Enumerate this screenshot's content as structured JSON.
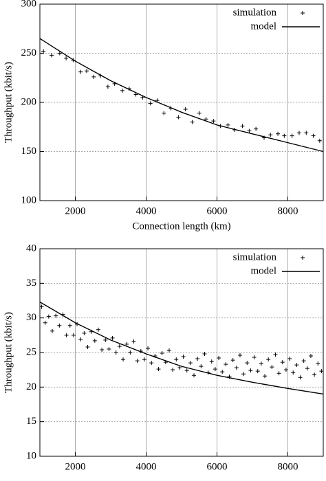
{
  "chart_data": [
    {
      "type": "combo",
      "xlabel": "Connection length (km)",
      "ylabel": "Throughput (kbit/s)",
      "xlim": [
        1000,
        9000
      ],
      "xticks": [
        2000,
        4000,
        6000,
        8000
      ],
      "ylim": [
        100,
        300
      ],
      "yticks": [
        100,
        150,
        200,
        250,
        300
      ],
      "grid": true,
      "legend": "upper right",
      "series": [
        {
          "name": "simulation",
          "type": "scatter",
          "color": "#000000",
          "x": [
            1100,
            1330,
            1560,
            1740,
            1940,
            2150,
            2320,
            2520,
            2710,
            2920,
            3110,
            3330,
            3520,
            3710,
            3900,
            4120,
            4310,
            4500,
            4700,
            4910,
            5110,
            5300,
            5500,
            5690,
            5900,
            6100,
            6310,
            6500,
            6720,
            6910,
            7100,
            7330,
            7510,
            7720,
            7900,
            8120,
            8320,
            8520,
            8720,
            8900
          ],
          "values": [
            252,
            248,
            250,
            245,
            243,
            231,
            232,
            226,
            227,
            216,
            219,
            212,
            214,
            208,
            205,
            199,
            202,
            189,
            194,
            185,
            193,
            180,
            189,
            183,
            181,
            176,
            177,
            172,
            176,
            171,
            173,
            164,
            167,
            168,
            166,
            166,
            169,
            169,
            166,
            161
          ]
        },
        {
          "name": "model",
          "type": "line",
          "color": "#000000",
          "x": [
            1000,
            2000,
            3000,
            4000,
            5000,
            6000,
            7000,
            8000,
            9000
          ],
          "values": [
            265,
            242,
            222,
            205,
            190,
            177,
            168,
            159,
            150
          ]
        }
      ]
    },
    {
      "type": "combo",
      "xlabel": "Connection length (km)",
      "ylabel": "Throughput (kbit/s)",
      "xlim": [
        1000,
        9000
      ],
      "xticks": [
        2000,
        4000,
        6000,
        8000
      ],
      "ylim": [
        10,
        40
      ],
      "yticks": [
        10,
        15,
        20,
        25,
        30,
        35,
        40
      ],
      "grid": true,
      "legend": "upper right",
      "series": [
        {
          "name": "simulation",
          "type": "scatter",
          "color": "#000000",
          "x": [
            1050,
            1150,
            1250,
            1350,
            1450,
            1550,
            1650,
            1750,
            1850,
            1950,
            2050,
            2150,
            2250,
            2350,
            2450,
            2550,
            2650,
            2750,
            2850,
            2950,
            3050,
            3150,
            3250,
            3350,
            3450,
            3550,
            3650,
            3750,
            3850,
            3950,
            4050,
            4150,
            4250,
            4350,
            4450,
            4550,
            4650,
            4750,
            4850,
            4950,
            5050,
            5150,
            5250,
            5350,
            5450,
            5550,
            5650,
            5750,
            5850,
            5950,
            6050,
            6150,
            6250,
            6350,
            6450,
            6550,
            6650,
            6750,
            6850,
            6950,
            7050,
            7150,
            7250,
            7350,
            7450,
            7550,
            7650,
            7750,
            7850,
            7950,
            8050,
            8150,
            8250,
            8350,
            8450,
            8550,
            8650,
            8750,
            8850,
            8950
          ],
          "values": [
            31.6,
            29.3,
            30.2,
            28.1,
            30.3,
            28.9,
            30.5,
            27.5,
            28.9,
            27.5,
            29.1,
            26.9,
            27.8,
            25.8,
            28.0,
            26.7,
            28.3,
            25.4,
            26.8,
            25.5,
            27.1,
            25.0,
            25.9,
            24.0,
            26.2,
            25.0,
            26.6,
            23.8,
            25.2,
            24.0,
            25.6,
            23.5,
            24.5,
            22.6,
            24.9,
            23.6,
            25.3,
            22.5,
            24.0,
            22.8,
            24.4,
            22.4,
            23.5,
            21.7,
            24.1,
            23.0,
            24.8,
            22.1,
            23.7,
            22.6,
            24.2,
            22.2,
            23.3,
            21.5,
            23.9,
            22.8,
            24.6,
            21.9,
            23.5,
            22.4,
            24.3,
            22.3,
            23.4,
            21.6,
            24.0,
            22.9,
            24.7,
            22.0,
            23.6,
            22.5,
            24.1,
            22.1,
            23.2,
            21.4,
            23.8,
            22.7,
            24.5,
            21.8,
            23.4,
            22.3
          ]
        },
        {
          "name": "model",
          "type": "line",
          "color": "#000000",
          "x": [
            1000,
            2000,
            3000,
            4000,
            5000,
            6000,
            7000,
            8000,
            9000
          ],
          "values": [
            32.3,
            29.3,
            26.8,
            24.8,
            23.0,
            21.7,
            20.7,
            19.8,
            19.0
          ]
        }
      ]
    }
  ]
}
